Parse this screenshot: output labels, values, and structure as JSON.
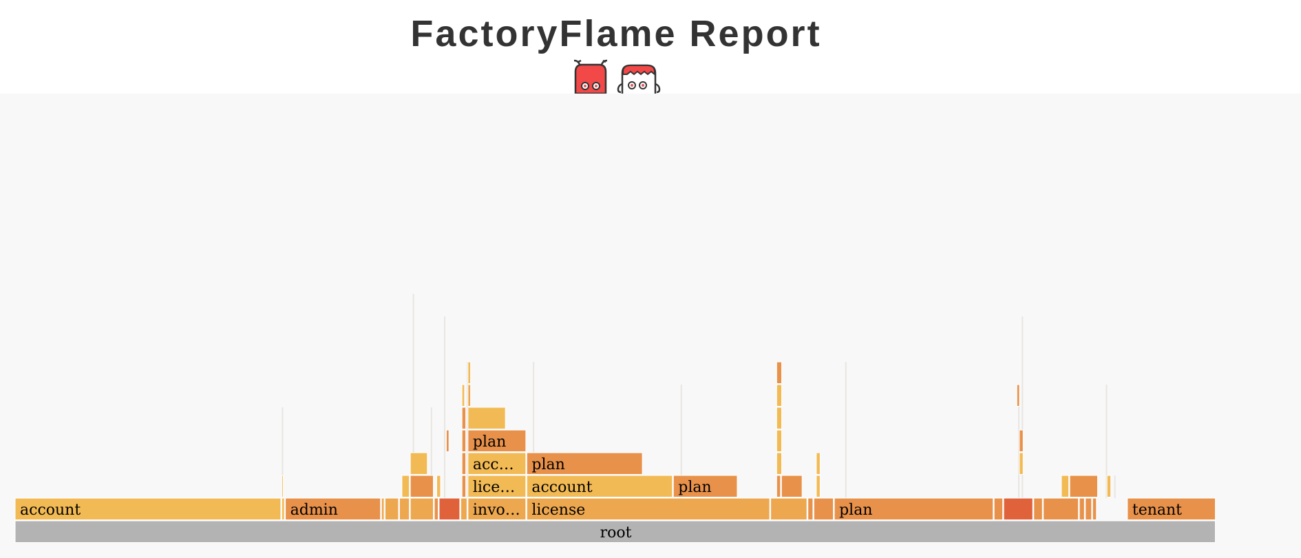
{
  "header": {
    "title": "FactoryFlame Report",
    "mascot_icons": [
      "red-bug-mascot-icon",
      "red-hair-mascot-icon"
    ]
  },
  "chart_data": {
    "type": "flamegraph",
    "title": "FactoryFlame Report",
    "root_label": "root",
    "colors": {
      "root": "#b3b3b3",
      "yellow": "#f2ba54",
      "orange": "#e8914a",
      "mid": "#eda74f",
      "red": "#e0623a",
      "background": "#f8f8f8"
    },
    "frames": [
      {
        "label": "root",
        "start": 0,
        "width": 1000,
        "depth": 0,
        "color": "root"
      },
      {
        "label": "account",
        "start": 0,
        "width": 222,
        "depth": 1,
        "color": "yellow"
      },
      {
        "label": "",
        "start": 222,
        "width": 3,
        "depth": 1,
        "color": "yellow"
      },
      {
        "label": "admin",
        "start": 225,
        "width": 80,
        "depth": 1,
        "color": "orange"
      },
      {
        "label": "",
        "start": 305,
        "width": 3,
        "depth": 1,
        "color": "mid"
      },
      {
        "label": "",
        "start": 308,
        "width": 12,
        "depth": 1,
        "color": "mid"
      },
      {
        "label": "",
        "start": 320,
        "width": 9,
        "depth": 1,
        "color": "mid"
      },
      {
        "label": "",
        "start": 329,
        "width": 20,
        "depth": 1,
        "color": "mid"
      },
      {
        "label": "",
        "start": 349,
        "width": 4,
        "depth": 1,
        "color": "orange"
      },
      {
        "label": "",
        "start": 353,
        "width": 18,
        "depth": 1,
        "color": "red"
      },
      {
        "label": "",
        "start": 371,
        "width": 6,
        "depth": 1,
        "color": "mid"
      },
      {
        "label": "invo…",
        "start": 377,
        "width": 49,
        "depth": 1,
        "color": "mid"
      },
      {
        "label": "license",
        "start": 426,
        "width": 203,
        "depth": 1,
        "color": "mid"
      },
      {
        "label": "",
        "start": 629,
        "width": 31,
        "depth": 1,
        "color": "mid"
      },
      {
        "label": "",
        "start": 660,
        "width": 5,
        "depth": 1,
        "color": "orange"
      },
      {
        "label": "",
        "start": 665,
        "width": 17,
        "depth": 1,
        "color": "orange"
      },
      {
        "label": "plan",
        "start": 682,
        "width": 133,
        "depth": 1,
        "color": "orange"
      },
      {
        "label": "",
        "start": 815,
        "width": 8,
        "depth": 1,
        "color": "orange"
      },
      {
        "label": "",
        "start": 823,
        "width": 25,
        "depth": 1,
        "color": "red"
      },
      {
        "label": "",
        "start": 848,
        "width": 8,
        "depth": 1,
        "color": "orange"
      },
      {
        "label": "",
        "start": 856,
        "width": 30,
        "depth": 1,
        "color": "orange"
      },
      {
        "label": "",
        "start": 886,
        "width": 5,
        "depth": 1,
        "color": "orange"
      },
      {
        "label": "",
        "start": 891,
        "width": 6,
        "depth": 1,
        "color": "orange"
      },
      {
        "label": "",
        "start": 897,
        "width": 4,
        "depth": 1,
        "color": "orange"
      },
      {
        "label": "tenant",
        "start": 926,
        "width": 74,
        "depth": 1,
        "color": "orange"
      },
      {
        "label": "",
        "start": 222,
        "width": 2,
        "depth": 2,
        "color": "yellow"
      },
      {
        "label": "",
        "start": 322,
        "width": 7,
        "depth": 2,
        "color": "yellow"
      },
      {
        "label": "",
        "start": 329,
        "width": 20,
        "depth": 2,
        "color": "orange"
      },
      {
        "label": "",
        "start": 351,
        "width": 4,
        "depth": 2,
        "color": "yellow"
      },
      {
        "label": "",
        "start": 372,
        "width": 4,
        "depth": 2,
        "color": "orange"
      },
      {
        "label": "lice…",
        "start": 377,
        "width": 49,
        "depth": 2,
        "color": "yellow"
      },
      {
        "label": "account",
        "start": 426,
        "width": 122,
        "depth": 2,
        "color": "yellow"
      },
      {
        "label": "plan",
        "start": 548,
        "width": 54,
        "depth": 2,
        "color": "orange"
      },
      {
        "label": "",
        "start": 634,
        "width": 4,
        "depth": 2,
        "color": "orange"
      },
      {
        "label": "",
        "start": 638,
        "width": 18,
        "depth": 2,
        "color": "orange"
      },
      {
        "label": "",
        "start": 667,
        "width": 4,
        "depth": 2,
        "color": "yellow"
      },
      {
        "label": "",
        "start": 871,
        "width": 7,
        "depth": 2,
        "color": "yellow"
      },
      {
        "label": "",
        "start": 878,
        "width": 24,
        "depth": 2,
        "color": "orange"
      },
      {
        "label": "",
        "start": 909,
        "width": 4,
        "depth": 2,
        "color": "yellow"
      },
      {
        "label": "",
        "start": 329,
        "width": 15,
        "depth": 3,
        "color": "yellow"
      },
      {
        "label": "",
        "start": 372,
        "width": 4,
        "depth": 3,
        "color": "orange"
      },
      {
        "label": "acc…",
        "start": 377,
        "width": 49,
        "depth": 3,
        "color": "yellow"
      },
      {
        "label": "plan",
        "start": 426,
        "width": 97,
        "depth": 3,
        "color": "orange"
      },
      {
        "label": "",
        "start": 634,
        "width": 5,
        "depth": 3,
        "color": "yellow"
      },
      {
        "label": "",
        "start": 667,
        "width": 4,
        "depth": 3,
        "color": "yellow"
      },
      {
        "label": "",
        "start": 836,
        "width": 4,
        "depth": 3,
        "color": "yellow"
      },
      {
        "label": "",
        "start": 359,
        "width": 3,
        "depth": 4,
        "color": "orange"
      },
      {
        "label": "",
        "start": 372,
        "width": 4,
        "depth": 4,
        "color": "orange"
      },
      {
        "label": "plan",
        "start": 377,
        "width": 49,
        "depth": 4,
        "color": "orange"
      },
      {
        "label": "",
        "start": 634,
        "width": 5,
        "depth": 4,
        "color": "yellow"
      },
      {
        "label": "",
        "start": 836,
        "width": 4,
        "depth": 4,
        "color": "orange"
      },
      {
        "label": "",
        "start": 377,
        "width": 32,
        "depth": 5,
        "color": "yellow"
      },
      {
        "label": "",
        "start": 372,
        "width": 4,
        "depth": 5,
        "color": "orange"
      },
      {
        "label": "",
        "start": 634,
        "width": 5,
        "depth": 5,
        "color": "yellow"
      },
      {
        "label": "",
        "start": 372,
        "width": 3,
        "depth": 6,
        "color": "yellow"
      },
      {
        "label": "",
        "start": 377,
        "width": 3,
        "depth": 6,
        "color": "mid"
      },
      {
        "label": "",
        "start": 634,
        "width": 5,
        "depth": 6,
        "color": "yellow"
      },
      {
        "label": "",
        "start": 834,
        "width": 3,
        "depth": 6,
        "color": "orange"
      },
      {
        "label": "",
        "start": 377,
        "width": 3,
        "depth": 7,
        "color": "yellow"
      },
      {
        "label": "",
        "start": 634,
        "width": 5,
        "depth": 7,
        "color": "orange"
      }
    ],
    "thin_lines": [
      {
        "start": 222,
        "top_depth": 5
      },
      {
        "start": 331,
        "top_depth": 10
      },
      {
        "start": 346,
        "top_depth": 5
      },
      {
        "start": 357,
        "top_depth": 9
      },
      {
        "start": 376,
        "top_depth": 7
      },
      {
        "start": 431,
        "top_depth": 7
      },
      {
        "start": 554,
        "top_depth": 6
      },
      {
        "start": 691,
        "top_depth": 7
      },
      {
        "start": 835,
        "top_depth": 6
      },
      {
        "start": 838,
        "top_depth": 9
      },
      {
        "start": 908,
        "top_depth": 6
      },
      {
        "start": 915,
        "top_depth": 2
      }
    ]
  }
}
